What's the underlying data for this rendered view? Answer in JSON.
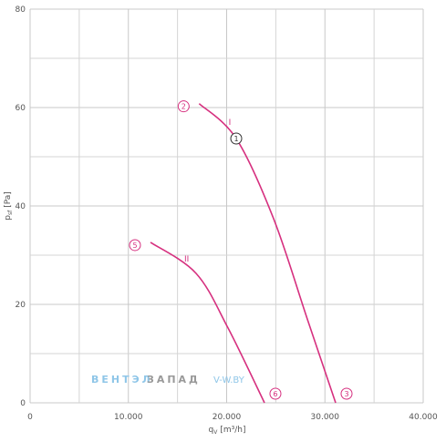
{
  "chart_data": {
    "type": "line",
    "x_label": {
      "main": "q",
      "sub": "V",
      "unit": "[m³/h]"
    },
    "y_label": {
      "main": "p",
      "sub": "sf",
      "unit": "[Pa]"
    },
    "xlim": [
      0,
      40000
    ],
    "ylim": [
      0,
      80
    ],
    "xticks": [
      {
        "value": 0,
        "label": "0"
      },
      {
        "value": 10000,
        "label": "10.000"
      },
      {
        "value": 20000,
        "label": "20.000"
      },
      {
        "value": 30000,
        "label": "30.000"
      },
      {
        "value": 40000,
        "label": "40.000"
      }
    ],
    "x_minor_ticks": [
      5000,
      15000,
      25000,
      35000
    ],
    "yticks": [
      0,
      20,
      40,
      60,
      80
    ],
    "y_minor_ticks": [
      10,
      30,
      50,
      70
    ],
    "grid": true,
    "series": [
      {
        "name": "I",
        "color": "#d6307f",
        "x": [
          17200,
          20974,
          24780,
          28213,
          31090
        ],
        "values": [
          60.8,
          53.7,
          37.4,
          17,
          0
        ],
        "start_label": "2",
        "end_label": "3",
        "point_label": "1"
      },
      {
        "name": "II",
        "color": "#d6307f",
        "x": [
          12250,
          16890,
          20140,
          23850
        ],
        "values": [
          32.6,
          26.3,
          15.2,
          0
        ],
        "start_label": "5",
        "end_label": "6"
      }
    ],
    "watermark": {
      "left": "ВЕНТЭЛ",
      "right": "ЗАПАД",
      "site": "V-W.BY"
    }
  }
}
